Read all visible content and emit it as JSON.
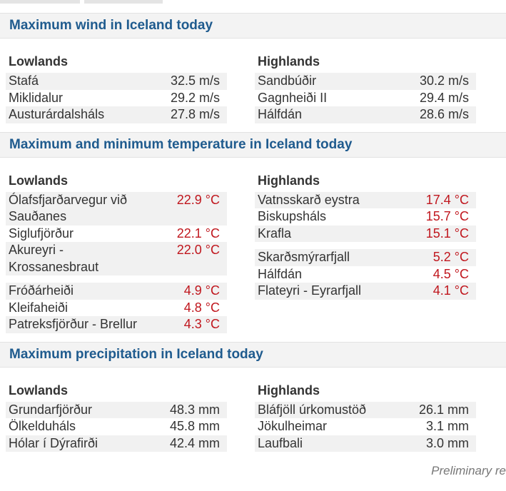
{
  "sections": [
    {
      "title": "Maximum wind in Iceland today",
      "columns": [
        {
          "heading": "Lowlands",
          "blocks": [
            [
              {
                "name": "Stafá",
                "value": "32.5 m/s"
              },
              {
                "name": "Miklidalur",
                "value": "29.2 m/s"
              },
              {
                "name": "Austurárdalsháls",
                "value": "27.8 m/s"
              }
            ]
          ]
        },
        {
          "heading": "Highlands",
          "blocks": [
            [
              {
                "name": "Sandbúðir",
                "value": "30.2 m/s"
              },
              {
                "name": "Gagnheiði II",
                "value": "29.4 m/s"
              },
              {
                "name": "Hálfdán",
                "value": "28.6 m/s"
              }
            ]
          ]
        }
      ]
    },
    {
      "title": "Maximum and minimum temperature in Iceland today",
      "value_color": "#c0161d",
      "columns": [
        {
          "heading": "Lowlands",
          "blocks": [
            [
              {
                "name": "Ólafsfjarðarvegur við Sauðanes",
                "value": "22.9 °C"
              },
              {
                "name": "Siglufjörður",
                "value": "22.1 °C"
              },
              {
                "name": "Akureyri - Krossanesbraut",
                "value": "22.0 °C"
              }
            ],
            [
              {
                "name": "Fróðárheiði",
                "value": "4.9 °C"
              },
              {
                "name": "Kleifaheiði",
                "value": "4.8 °C"
              },
              {
                "name": "Patreksfjörður - Brellur",
                "value": "4.3 °C"
              }
            ]
          ]
        },
        {
          "heading": "Highlands",
          "blocks": [
            [
              {
                "name": "Vatnsskarð eystra",
                "value": "17.4 °C"
              },
              {
                "name": "Biskupsháls",
                "value": "15.7 °C"
              },
              {
                "name": "Krafla",
                "value": "15.1 °C"
              }
            ],
            [
              {
                "name": "Skarðsmýrarfjall",
                "value": "5.2 °C"
              },
              {
                "name": "Hálfdán",
                "value": "4.5 °C"
              },
              {
                "name": "Flateyri - Eyrarfjall",
                "value": "4.1 °C"
              }
            ]
          ]
        }
      ]
    },
    {
      "title": "Maximum precipitation in Iceland today",
      "columns": [
        {
          "heading": "Lowlands",
          "blocks": [
            [
              {
                "name": "Grundarfjörður",
                "value": "48.3 mm"
              },
              {
                "name": "Ölkelduháls",
                "value": "45.8 mm"
              },
              {
                "name": "Hólar í Dýrafirði",
                "value": "42.4 mm"
              }
            ]
          ]
        },
        {
          "heading": "Highlands",
          "blocks": [
            [
              {
                "name": "Bláfjöll úrkomustöð",
                "value": "26.1 mm"
              },
              {
                "name": "Jökulheimar",
                "value": "3.1 mm"
              },
              {
                "name": "Laufbali",
                "value": "3.0 mm"
              }
            ]
          ]
        }
      ]
    }
  ],
  "footer": "Preliminary re"
}
